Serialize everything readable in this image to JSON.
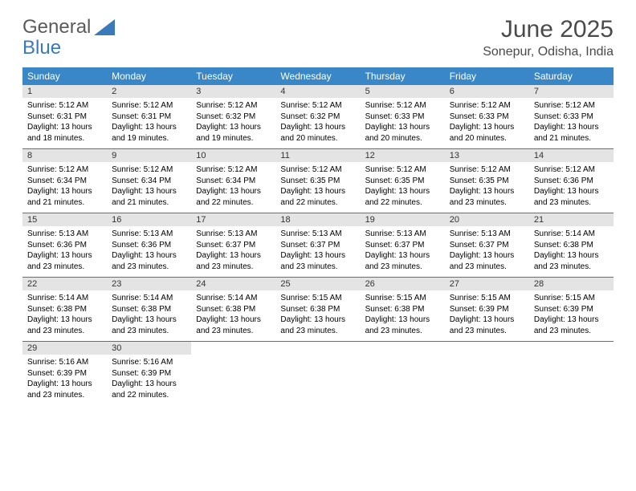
{
  "brand": {
    "part1": "General",
    "part2": "Blue"
  },
  "title": "June 2025",
  "location": "Sonepur, Odisha, India",
  "colors": {
    "header_bg": "#3a87c7",
    "daynum_bg": "#e4e4e4",
    "border": "#3a7ab8",
    "brand_gray": "#5a5a5a",
    "brand_blue": "#3a7ab8"
  },
  "weekdays": [
    "Sunday",
    "Monday",
    "Tuesday",
    "Wednesday",
    "Thursday",
    "Friday",
    "Saturday"
  ],
  "weeks": [
    [
      {
        "n": "1",
        "sr": "Sunrise: 5:12 AM",
        "ss": "Sunset: 6:31 PM",
        "d1": "Daylight: 13 hours",
        "d2": "and 18 minutes."
      },
      {
        "n": "2",
        "sr": "Sunrise: 5:12 AM",
        "ss": "Sunset: 6:31 PM",
        "d1": "Daylight: 13 hours",
        "d2": "and 19 minutes."
      },
      {
        "n": "3",
        "sr": "Sunrise: 5:12 AM",
        "ss": "Sunset: 6:32 PM",
        "d1": "Daylight: 13 hours",
        "d2": "and 19 minutes."
      },
      {
        "n": "4",
        "sr": "Sunrise: 5:12 AM",
        "ss": "Sunset: 6:32 PM",
        "d1": "Daylight: 13 hours",
        "d2": "and 20 minutes."
      },
      {
        "n": "5",
        "sr": "Sunrise: 5:12 AM",
        "ss": "Sunset: 6:33 PM",
        "d1": "Daylight: 13 hours",
        "d2": "and 20 minutes."
      },
      {
        "n": "6",
        "sr": "Sunrise: 5:12 AM",
        "ss": "Sunset: 6:33 PM",
        "d1": "Daylight: 13 hours",
        "d2": "and 20 minutes."
      },
      {
        "n": "7",
        "sr": "Sunrise: 5:12 AM",
        "ss": "Sunset: 6:33 PM",
        "d1": "Daylight: 13 hours",
        "d2": "and 21 minutes."
      }
    ],
    [
      {
        "n": "8",
        "sr": "Sunrise: 5:12 AM",
        "ss": "Sunset: 6:34 PM",
        "d1": "Daylight: 13 hours",
        "d2": "and 21 minutes."
      },
      {
        "n": "9",
        "sr": "Sunrise: 5:12 AM",
        "ss": "Sunset: 6:34 PM",
        "d1": "Daylight: 13 hours",
        "d2": "and 21 minutes."
      },
      {
        "n": "10",
        "sr": "Sunrise: 5:12 AM",
        "ss": "Sunset: 6:34 PM",
        "d1": "Daylight: 13 hours",
        "d2": "and 22 minutes."
      },
      {
        "n": "11",
        "sr": "Sunrise: 5:12 AM",
        "ss": "Sunset: 6:35 PM",
        "d1": "Daylight: 13 hours",
        "d2": "and 22 minutes."
      },
      {
        "n": "12",
        "sr": "Sunrise: 5:12 AM",
        "ss": "Sunset: 6:35 PM",
        "d1": "Daylight: 13 hours",
        "d2": "and 22 minutes."
      },
      {
        "n": "13",
        "sr": "Sunrise: 5:12 AM",
        "ss": "Sunset: 6:35 PM",
        "d1": "Daylight: 13 hours",
        "d2": "and 23 minutes."
      },
      {
        "n": "14",
        "sr": "Sunrise: 5:12 AM",
        "ss": "Sunset: 6:36 PM",
        "d1": "Daylight: 13 hours",
        "d2": "and 23 minutes."
      }
    ],
    [
      {
        "n": "15",
        "sr": "Sunrise: 5:13 AM",
        "ss": "Sunset: 6:36 PM",
        "d1": "Daylight: 13 hours",
        "d2": "and 23 minutes."
      },
      {
        "n": "16",
        "sr": "Sunrise: 5:13 AM",
        "ss": "Sunset: 6:36 PM",
        "d1": "Daylight: 13 hours",
        "d2": "and 23 minutes."
      },
      {
        "n": "17",
        "sr": "Sunrise: 5:13 AM",
        "ss": "Sunset: 6:37 PM",
        "d1": "Daylight: 13 hours",
        "d2": "and 23 minutes."
      },
      {
        "n": "18",
        "sr": "Sunrise: 5:13 AM",
        "ss": "Sunset: 6:37 PM",
        "d1": "Daylight: 13 hours",
        "d2": "and 23 minutes."
      },
      {
        "n": "19",
        "sr": "Sunrise: 5:13 AM",
        "ss": "Sunset: 6:37 PM",
        "d1": "Daylight: 13 hours",
        "d2": "and 23 minutes."
      },
      {
        "n": "20",
        "sr": "Sunrise: 5:13 AM",
        "ss": "Sunset: 6:37 PM",
        "d1": "Daylight: 13 hours",
        "d2": "and 23 minutes."
      },
      {
        "n": "21",
        "sr": "Sunrise: 5:14 AM",
        "ss": "Sunset: 6:38 PM",
        "d1": "Daylight: 13 hours",
        "d2": "and 23 minutes."
      }
    ],
    [
      {
        "n": "22",
        "sr": "Sunrise: 5:14 AM",
        "ss": "Sunset: 6:38 PM",
        "d1": "Daylight: 13 hours",
        "d2": "and 23 minutes."
      },
      {
        "n": "23",
        "sr": "Sunrise: 5:14 AM",
        "ss": "Sunset: 6:38 PM",
        "d1": "Daylight: 13 hours",
        "d2": "and 23 minutes."
      },
      {
        "n": "24",
        "sr": "Sunrise: 5:14 AM",
        "ss": "Sunset: 6:38 PM",
        "d1": "Daylight: 13 hours",
        "d2": "and 23 minutes."
      },
      {
        "n": "25",
        "sr": "Sunrise: 5:15 AM",
        "ss": "Sunset: 6:38 PM",
        "d1": "Daylight: 13 hours",
        "d2": "and 23 minutes."
      },
      {
        "n": "26",
        "sr": "Sunrise: 5:15 AM",
        "ss": "Sunset: 6:38 PM",
        "d1": "Daylight: 13 hours",
        "d2": "and 23 minutes."
      },
      {
        "n": "27",
        "sr": "Sunrise: 5:15 AM",
        "ss": "Sunset: 6:39 PM",
        "d1": "Daylight: 13 hours",
        "d2": "and 23 minutes."
      },
      {
        "n": "28",
        "sr": "Sunrise: 5:15 AM",
        "ss": "Sunset: 6:39 PM",
        "d1": "Daylight: 13 hours",
        "d2": "and 23 minutes."
      }
    ],
    [
      {
        "n": "29",
        "sr": "Sunrise: 5:16 AM",
        "ss": "Sunset: 6:39 PM",
        "d1": "Daylight: 13 hours",
        "d2": "and 23 minutes."
      },
      {
        "n": "30",
        "sr": "Sunrise: 5:16 AM",
        "ss": "Sunset: 6:39 PM",
        "d1": "Daylight: 13 hours",
        "d2": "and 22 minutes."
      },
      null,
      null,
      null,
      null,
      null
    ]
  ]
}
